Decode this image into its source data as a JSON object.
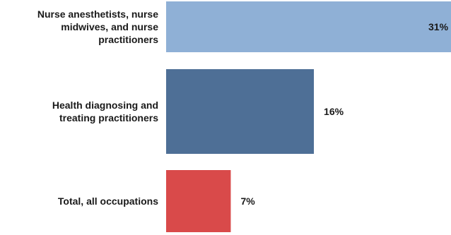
{
  "chart_data": {
    "type": "bar",
    "orientation": "horizontal",
    "categories": [
      [
        "Nurse anesthetists, nurse",
        "midwives, and nurse",
        "practitioners"
      ],
      [
        "Health diagnosing and",
        "treating practitioners"
      ],
      [
        "Total, all occupations"
      ]
    ],
    "values": [
      31,
      16,
      7
    ],
    "value_labels": [
      "31%",
      "16%",
      "7%"
    ],
    "bar_colors": [
      "#8fb0d6",
      "#4e6f96",
      "#d94a4a"
    ],
    "xlim": [
      0,
      31
    ],
    "grid": false,
    "legend": "none",
    "title": "",
    "xlabel": "",
    "ylabel": ""
  }
}
